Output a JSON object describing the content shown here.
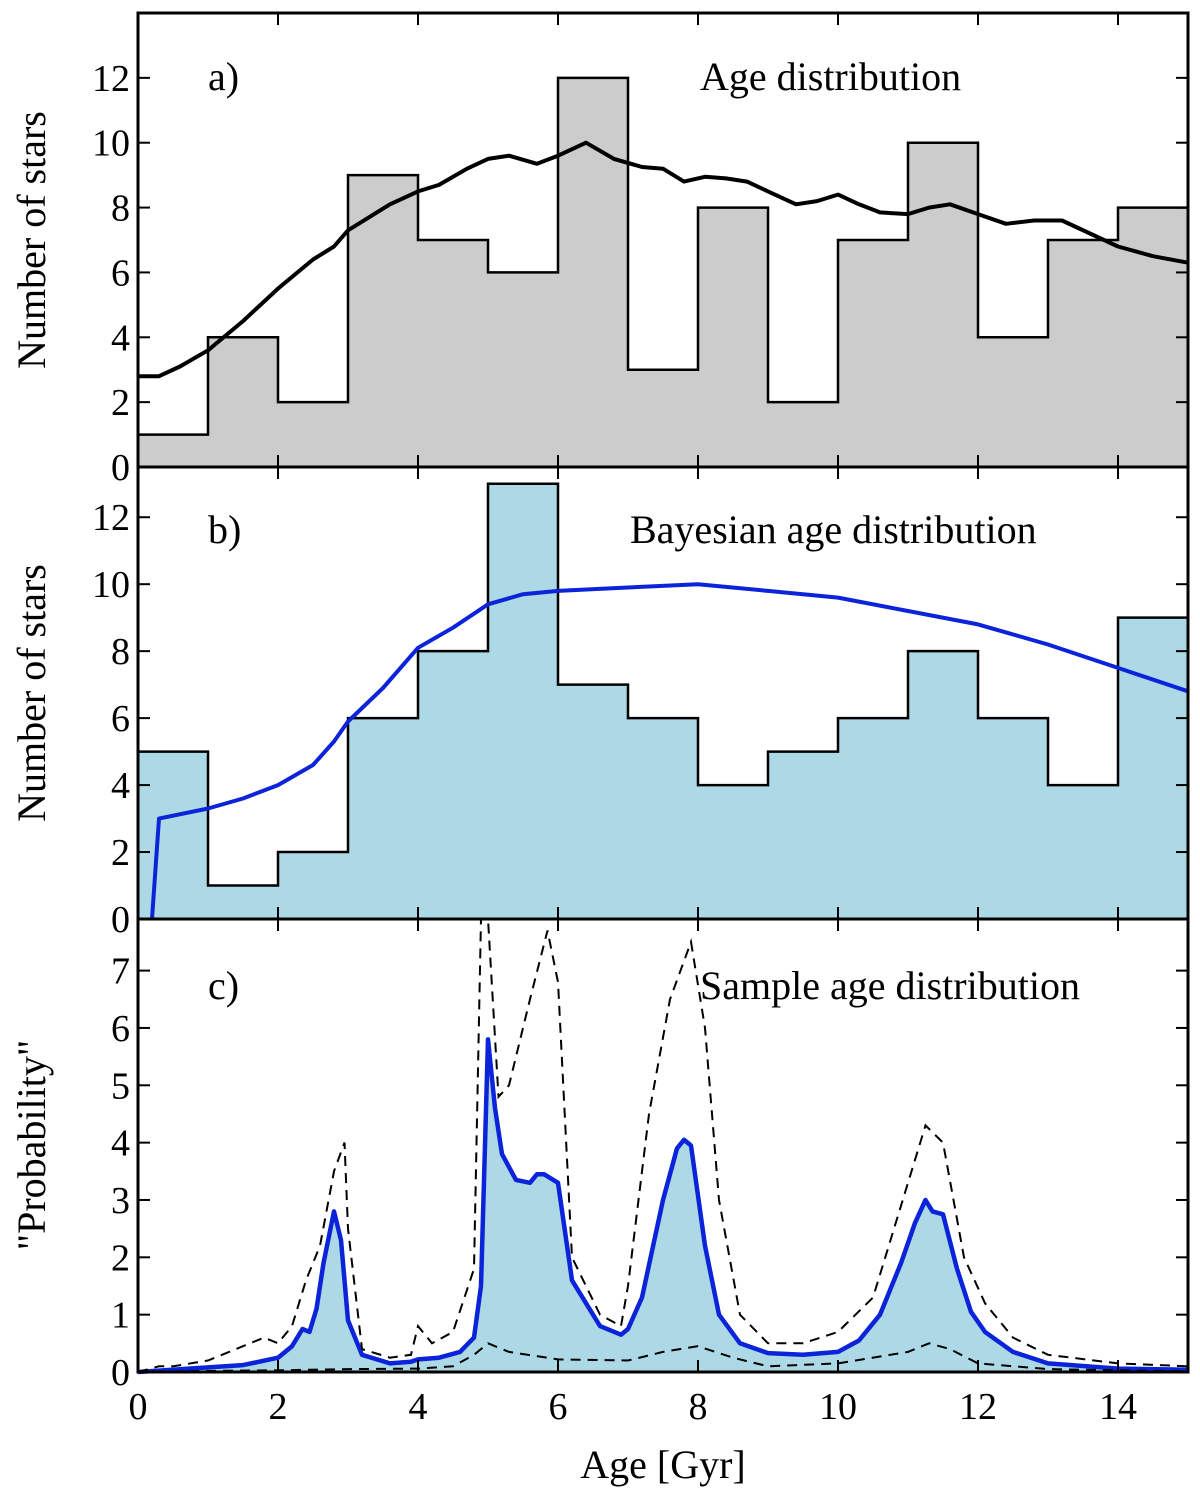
{
  "figure": {
    "xlabel": "Age [Gyr]"
  },
  "chart_data": [
    {
      "type": "bar",
      "panel": "a)",
      "title": "Age distribution",
      "ylabel": "Number of stars",
      "xlim": [
        0,
        15
      ],
      "ylim": [
        0,
        14
      ],
      "yticks": [
        0,
        2,
        4,
        6,
        8,
        10,
        12
      ],
      "xticks": [
        0,
        2,
        4,
        6,
        8,
        10,
        12,
        14
      ],
      "bin_edges": [
        0,
        1,
        2,
        3,
        4,
        5,
        6,
        7,
        8,
        9,
        10,
        11,
        12,
        13,
        14,
        15
      ],
      "values": [
        1,
        4,
        2,
        9,
        7,
        6,
        12,
        3,
        8,
        2,
        7,
        10,
        4,
        7,
        8
      ],
      "fill_color": "#cccccc",
      "curve": {
        "color": "#000000",
        "x": [
          0,
          0.3,
          0.6,
          1.0,
          1.5,
          2.0,
          2.5,
          2.8,
          3.0,
          3.3,
          3.6,
          4.0,
          4.3,
          4.7,
          5.0,
          5.3,
          5.7,
          6.0,
          6.4,
          6.8,
          7.2,
          7.5,
          7.8,
          8.1,
          8.4,
          8.7,
          9.0,
          9.4,
          9.7,
          10.0,
          10.3,
          10.6,
          11.0,
          11.3,
          11.6,
          12.0,
          12.4,
          12.8,
          13.2,
          13.6,
          14.0,
          14.5,
          15.0
        ],
        "y": [
          2.8,
          2.8,
          3.1,
          3.6,
          4.5,
          5.5,
          6.4,
          6.8,
          7.3,
          7.7,
          8.1,
          8.5,
          8.7,
          9.2,
          9.5,
          9.6,
          9.35,
          9.6,
          10.0,
          9.5,
          9.25,
          9.2,
          8.8,
          8.95,
          8.9,
          8.8,
          8.5,
          8.1,
          8.2,
          8.4,
          8.1,
          7.85,
          7.8,
          8.0,
          8.1,
          7.8,
          7.5,
          7.6,
          7.6,
          7.2,
          6.8,
          6.5,
          6.3
        ]
      }
    },
    {
      "type": "bar",
      "panel": "b)",
      "title": "Bayesian age distribution",
      "ylabel": "Number of stars",
      "xlim": [
        0,
        15
      ],
      "ylim": [
        0,
        13.5
      ],
      "yticks": [
        0,
        2,
        4,
        6,
        8,
        10,
        12
      ],
      "xticks": [
        0,
        2,
        4,
        6,
        8,
        10,
        12,
        14
      ],
      "bin_edges": [
        0,
        1,
        2,
        3,
        4,
        5,
        6,
        7,
        8,
        9,
        10,
        11,
        12,
        13,
        14,
        15
      ],
      "values": [
        5,
        1,
        2,
        6,
        8,
        13,
        7,
        6,
        4,
        5,
        6,
        8,
        6,
        4,
        9
      ],
      "fill_color": "#add8e6",
      "curve": {
        "color": "#0b24d9",
        "x": [
          0.2,
          0.3,
          1.0,
          1.5,
          2.0,
          2.5,
          2.8,
          3.0,
          3.5,
          4.0,
          4.5,
          5.0,
          5.5,
          6.0,
          7.0,
          8.0,
          9.0,
          10.0,
          11.0,
          12.0,
          13.0,
          14.0,
          15.0
        ],
        "y": [
          0,
          3.0,
          3.3,
          3.6,
          4.0,
          4.6,
          5.3,
          5.9,
          6.9,
          8.1,
          8.7,
          9.4,
          9.7,
          9.8,
          9.9,
          10.0,
          9.8,
          9.6,
          9.2,
          8.8,
          8.2,
          7.5,
          6.8
        ]
      }
    },
    {
      "type": "area",
      "panel": "c)",
      "title": "Sample age distribution",
      "ylabel": "\"Probability\"",
      "xlabel": "Age [Gyr]",
      "xlim": [
        0,
        15
      ],
      "ylim": [
        0,
        7.9
      ],
      "yticks": [
        0,
        1,
        2,
        3,
        4,
        5,
        6,
        7
      ],
      "xticks": [
        0,
        2,
        4,
        6,
        8,
        10,
        12,
        14
      ],
      "fill_color": "#add8e6",
      "line_color": "#0b24d9",
      "main": {
        "x": [
          0,
          1.0,
          1.5,
          2.0,
          2.2,
          2.35,
          2.45,
          2.55,
          2.65,
          2.8,
          2.9,
          3.0,
          3.2,
          3.6,
          3.9,
          4.0,
          4.3,
          4.6,
          4.8,
          4.9,
          5.0,
          5.1,
          5.2,
          5.4,
          5.6,
          5.7,
          5.8,
          6.0,
          6.2,
          6.6,
          6.9,
          7.0,
          7.2,
          7.5,
          7.7,
          7.8,
          7.9,
          8.1,
          8.3,
          8.6,
          9.0,
          9.5,
          10.0,
          10.3,
          10.6,
          10.9,
          11.1,
          11.25,
          11.35,
          11.5,
          11.7,
          11.9,
          12.1,
          12.5,
          13.0,
          14.0,
          15.0
        ],
        "y": [
          0,
          0.08,
          0.12,
          0.25,
          0.45,
          0.75,
          0.7,
          1.1,
          1.9,
          2.8,
          2.3,
          0.9,
          0.3,
          0.15,
          0.18,
          0.22,
          0.25,
          0.35,
          0.6,
          1.5,
          5.8,
          4.6,
          3.8,
          3.35,
          3.3,
          3.45,
          3.45,
          3.3,
          1.6,
          0.8,
          0.65,
          0.75,
          1.3,
          3.0,
          3.9,
          4.05,
          3.95,
          2.2,
          1.0,
          0.5,
          0.33,
          0.3,
          0.35,
          0.55,
          1.0,
          1.9,
          2.6,
          3.0,
          2.8,
          2.75,
          1.8,
          1.05,
          0.7,
          0.35,
          0.15,
          0.06,
          0.04
        ]
      },
      "dashed_upper": {
        "x": [
          0,
          0.3,
          0.5,
          1.0,
          1.5,
          1.8,
          2.0,
          2.2,
          2.4,
          2.6,
          2.8,
          2.95,
          3.0,
          3.2,
          3.6,
          3.9,
          4.0,
          4.2,
          4.5,
          4.8,
          4.9,
          5.0,
          5.15,
          5.3,
          5.6,
          5.85,
          6.0,
          6.2,
          6.6,
          6.9,
          7.0,
          7.3,
          7.6,
          7.9,
          8.1,
          8.3,
          8.6,
          9.0,
          9.5,
          10.0,
          10.5,
          11.0,
          11.25,
          11.5,
          11.8,
          12.1,
          12.5,
          13.0,
          14.0,
          15.0
        ],
        "y": [
          0,
          0.1,
          0.1,
          0.2,
          0.45,
          0.6,
          0.5,
          0.8,
          1.6,
          2.2,
          3.5,
          4.0,
          2.5,
          0.4,
          0.25,
          0.3,
          0.8,
          0.5,
          0.7,
          1.8,
          7.9,
          7.9,
          4.8,
          5.0,
          6.5,
          7.7,
          6.8,
          2.0,
          1.0,
          0.8,
          1.5,
          4.5,
          6.5,
          7.5,
          6.0,
          3.0,
          1.0,
          0.5,
          0.5,
          0.7,
          1.3,
          3.3,
          4.3,
          4.0,
          2.0,
          1.2,
          0.6,
          0.3,
          0.15,
          0.1
        ]
      },
      "dashed_lower": {
        "x": [
          0,
          1.0,
          2.0,
          3.0,
          4.0,
          4.5,
          4.8,
          5.0,
          5.3,
          6.0,
          7.0,
          7.5,
          8.0,
          8.5,
          9.0,
          10.0,
          11.0,
          11.3,
          11.6,
          12.0,
          13.0,
          14.0,
          15.0
        ],
        "y": [
          0,
          0.02,
          0.03,
          0.05,
          0.06,
          0.1,
          0.3,
          0.5,
          0.35,
          0.22,
          0.2,
          0.35,
          0.45,
          0.25,
          0.1,
          0.15,
          0.35,
          0.5,
          0.4,
          0.15,
          0.05,
          0.03,
          0.01
        ]
      }
    }
  ]
}
